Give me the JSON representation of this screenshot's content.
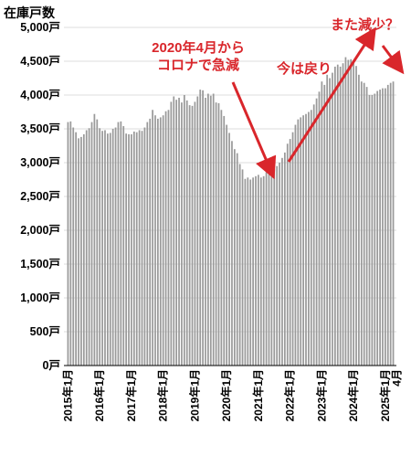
{
  "chart_data": {
    "type": "bar",
    "ylabel": "在庫戸数",
    "ylim": [
      0,
      5000
    ],
    "yticks": [
      "0戸",
      "500戸",
      "1,000戸",
      "1,500戸",
      "2,000戸",
      "2,500戸",
      "3,000戸",
      "3,500戸",
      "4,000戸",
      "4,500戸",
      "5,000戸"
    ],
    "xticks": [
      "2015年1月",
      "2016年1月",
      "2017年1月",
      "2018年1月",
      "2019年1月",
      "2020年1月",
      "2021年1月",
      "2022年1月",
      "2023年1月",
      "2024年1月",
      "2025年1月",
      "4月"
    ],
    "x_start": "2015-01",
    "x_end": "2025-04",
    "bar_color": "#9a9a9a",
    "values": [
      3600,
      3610,
      3520,
      3450,
      3360,
      3380,
      3420,
      3480,
      3510,
      3600,
      3720,
      3640,
      3510,
      3470,
      3480,
      3430,
      3440,
      3500,
      3520,
      3600,
      3610,
      3540,
      3430,
      3420,
      3420,
      3460,
      3450,
      3480,
      3470,
      3520,
      3600,
      3650,
      3780,
      3700,
      3650,
      3670,
      3700,
      3760,
      3780,
      3900,
      3980,
      3930,
      3960,
      3890,
      4000,
      3920,
      3850,
      3840,
      3900,
      3980,
      4080,
      4070,
      3960,
      4020,
      3990,
      4020,
      3890,
      3880,
      3780,
      3690,
      3560,
      3440,
      3320,
      3200,
      3140,
      2980,
      2900,
      2760,
      2780,
      2750,
      2780,
      2800,
      2820,
      2780,
      2800,
      2860,
      2900,
      2930,
      2900,
      2950,
      3000,
      3070,
      3150,
      3280,
      3350,
      3450,
      3560,
      3640,
      3670,
      3700,
      3720,
      3750,
      3780,
      3860,
      3950,
      4050,
      4200,
      4150,
      4300,
      4250,
      4330,
      4420,
      4450,
      4420,
      4470,
      4560,
      4520,
      4530,
      4500,
      4430,
      4300,
      4200,
      4180,
      4120,
      4000,
      4000,
      4020,
      4060,
      4080,
      4100,
      4100,
      4150,
      4180,
      4200
    ]
  },
  "annotations": {
    "covid_line1": "2020年4月から",
    "covid_line2": "コロナで急減",
    "recovery": "今は戻り",
    "again": "また減少？"
  },
  "annotation_color": "#d9262b"
}
